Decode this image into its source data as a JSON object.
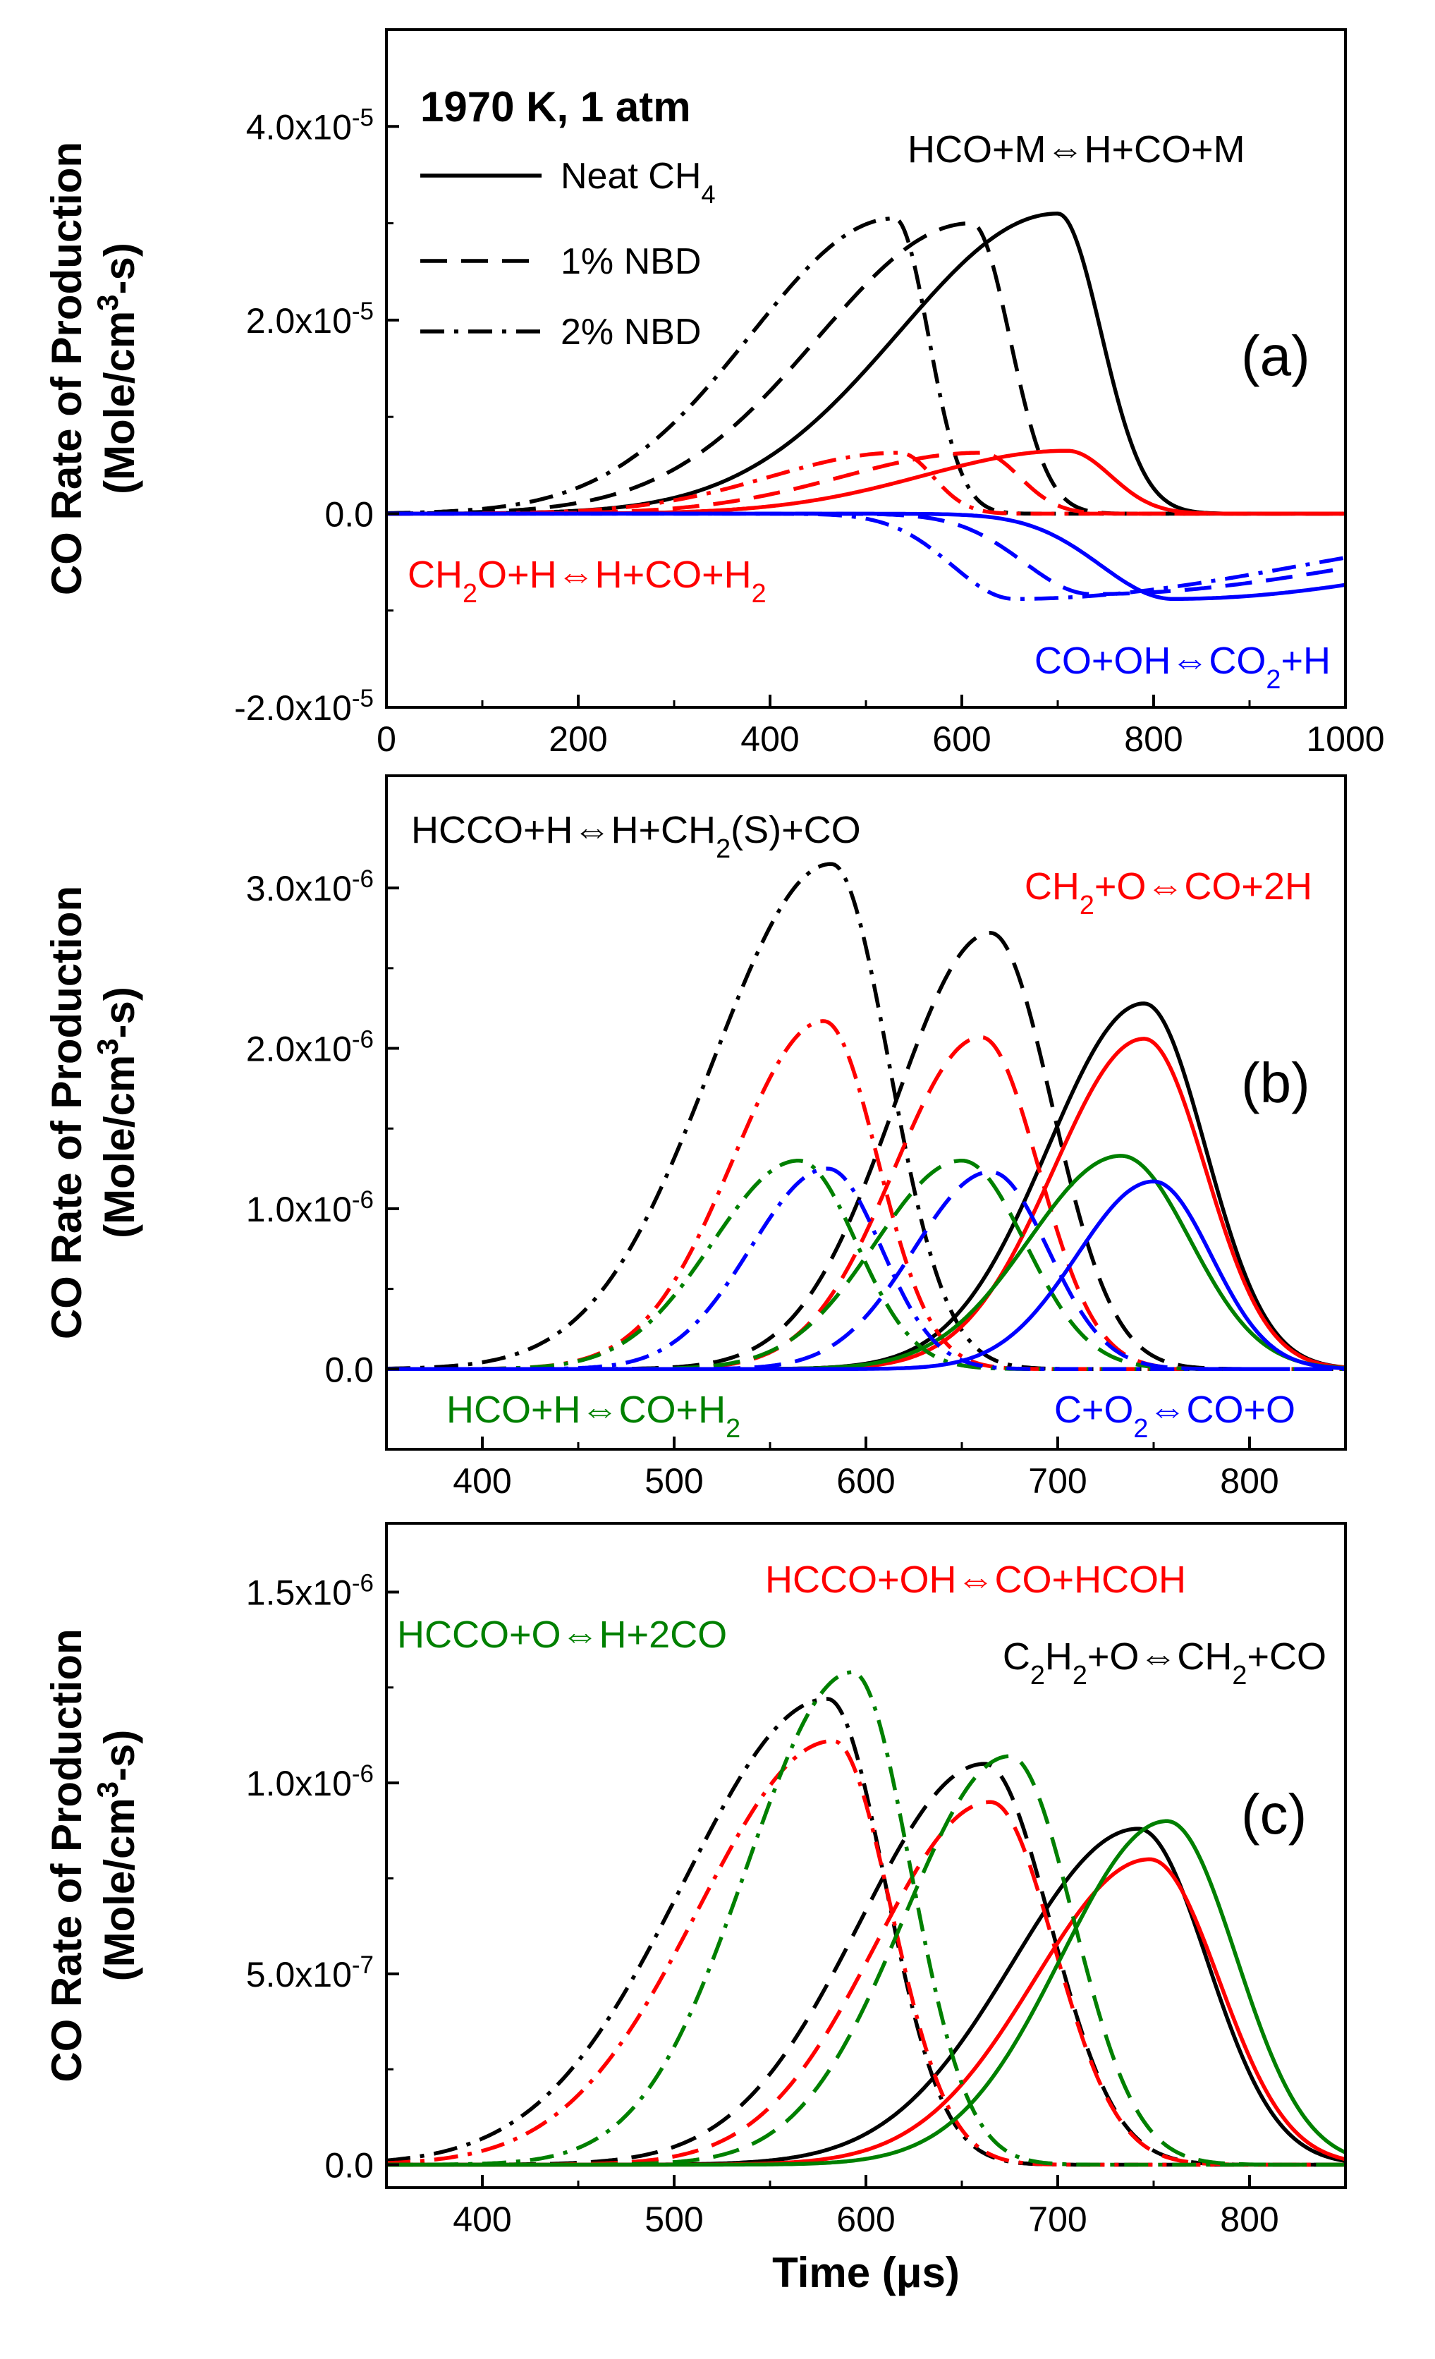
{
  "chart_data": [
    {
      "type": "line",
      "panel_label": "(a)",
      "ylabel_line1": "CO Rate of Production",
      "ylabel_line2_a": "(Mole/cm",
      "ylabel_line2_sup": "3",
      "ylabel_line2_b": "-s)",
      "xlim": [
        0,
        1000
      ],
      "ylim": [
        -2e-05,
        5e-05
      ],
      "x_ticks": [
        0,
        200,
        400,
        600,
        800,
        1000
      ],
      "x_tick_labels": [
        "0",
        "200",
        "400",
        "600",
        "800",
        "1000"
      ],
      "y_ticks": [
        -2e-05,
        0,
        2e-05,
        4e-05
      ],
      "y_tick_labels": [
        {
          "base": "-2.0x10",
          "exp": "-5"
        },
        {
          "base": "0.0",
          "exp": ""
        },
        {
          "base": "2.0x10",
          "exp": "-5"
        },
        {
          "base": "4.0x10",
          "exp": "-5"
        }
      ],
      "legend": {
        "title": "1970 K, 1 atm",
        "entries": [
          {
            "label": "Neat CH",
            "sub": "4",
            "style": "solid"
          },
          {
            "label": "1% NBD",
            "sub": "",
            "style": "dash"
          },
          {
            "label": "2% NBD",
            "sub": "",
            "style": "dashdot"
          }
        ]
      },
      "annotations": [
        {
          "color": "#000000",
          "parts": [
            {
              "t": "HCO+M⇔H+CO+M"
            }
          ]
        },
        {
          "color": "#ff0000",
          "parts": [
            {
              "t": "CH"
            },
            {
              "t": "2",
              "s": "sub"
            },
            {
              "t": "O+H⇔H+CO+H"
            },
            {
              "t": "2",
              "s": "sub"
            }
          ]
        },
        {
          "color": "#0000ff",
          "parts": [
            {
              "t": "CO+OH⇔CO"
            },
            {
              "t": "2",
              "s": "sub"
            },
            {
              "t": "+H"
            }
          ]
        }
      ],
      "series": [
        {
          "name": "HCO+M⇔H+CO+M, Neat CH4",
          "color": "#000000",
          "style": "solid",
          "peak_x": 700,
          "peak_y": 3.1e-05,
          "sigma_left": 165,
          "sigma_right": 45
        },
        {
          "name": "HCO+M⇔H+CO+M, 1% NBD",
          "color": "#000000",
          "style": "dash",
          "peak_x": 610,
          "peak_y": 3e-05,
          "sigma_left": 160,
          "sigma_right": 40
        },
        {
          "name": "HCO+M⇔H+CO+M, 2% NBD",
          "color": "#000000",
          "style": "dashdot",
          "peak_x": 530,
          "peak_y": 3.05e-05,
          "sigma_left": 150,
          "sigma_right": 35
        },
        {
          "name": "CH2O+H⇔H+CO+H2, Neat CH4",
          "color": "#ff0000",
          "style": "solid",
          "peak_x": 710,
          "peak_y": 6.5e-06,
          "sigma_left": 150,
          "sigma_right": 45
        },
        {
          "name": "CH2O+H⇔H+CO+H2, 1% NBD",
          "color": "#ff0000",
          "style": "dash",
          "peak_x": 620,
          "peak_y": 6.3e-06,
          "sigma_left": 145,
          "sigma_right": 40
        },
        {
          "name": "CH2O+H⇔H+CO+H2, 2% NBD",
          "color": "#ff0000",
          "style": "dashdot",
          "peak_x": 535,
          "peak_y": 6.3e-06,
          "sigma_left": 135,
          "sigma_right": 35
        },
        {
          "name": "CO+OH⇔CO2+H, Neat CH4",
          "color": "#0000ff",
          "style": "solid",
          "peak_x": 820,
          "peak_y": -8.8e-06,
          "sigma_left": 75,
          "sigma_right": 300
        },
        {
          "name": "CO+OH⇔CO2+H, 1% NBD",
          "color": "#0000ff",
          "style": "dash",
          "peak_x": 735,
          "peak_y": -8.3e-06,
          "sigma_left": 70,
          "sigma_right": 300
        },
        {
          "name": "CO+OH⇔CO2+H, 2% NBD",
          "color": "#0000ff",
          "style": "dashdot",
          "peak_x": 655,
          "peak_y": -8.8e-06,
          "sigma_left": 65,
          "sigma_right": 300
        }
      ]
    },
    {
      "type": "line",
      "panel_label": "(b)",
      "ylabel_line1": "CO Rate of Production",
      "ylabel_line2_a": "(Mole/cm",
      "ylabel_line2_sup": "3",
      "ylabel_line2_b": "-s)",
      "xlim": [
        350,
        850
      ],
      "ylim": [
        -5e-07,
        3.7e-06
      ],
      "x_ticks": [
        400,
        500,
        600,
        700,
        800
      ],
      "x_tick_labels": [
        "400",
        "500",
        "600",
        "700",
        "800"
      ],
      "y_ticks": [
        0,
        1e-06,
        2e-06,
        3e-06
      ],
      "y_tick_labels": [
        {
          "base": "0.0",
          "exp": ""
        },
        {
          "base": "1.0x10",
          "exp": "-6"
        },
        {
          "base": "2.0x10",
          "exp": "-6"
        },
        {
          "base": "3.0x10",
          "exp": "-6"
        }
      ],
      "annotations": [
        {
          "color": "#000000",
          "parts": [
            {
              "t": "HCCO+H⇔H+CH"
            },
            {
              "t": "2",
              "s": "sub"
            },
            {
              "t": "(S)+CO"
            }
          ]
        },
        {
          "color": "#ff0000",
          "parts": [
            {
              "t": "CH"
            },
            {
              "t": "2",
              "s": "sub"
            },
            {
              "t": "+O⇔CO+2H"
            }
          ]
        },
        {
          "color": "#008000",
          "parts": [
            {
              "t": "HCO+H⇔CO+H"
            },
            {
              "t": "2",
              "s": "sub"
            }
          ]
        },
        {
          "color": "#0000ff",
          "parts": [
            {
              "t": "C+O"
            },
            {
              "t": "2",
              "s": "sub"
            },
            {
              "t": "⇔CO+O"
            }
          ]
        }
      ],
      "series": [
        {
          "name": "HCCO+H⇔H+CH2(S)+CO, Neat CH4",
          "color": "#000000",
          "style": "solid",
          "peak_x": 745,
          "peak_y": 2.28e-06,
          "sigma_left": 50,
          "sigma_right": 32
        },
        {
          "name": "HCCO+H⇔H+CH2(S)+CO, 1% NBD",
          "color": "#000000",
          "style": "dash",
          "peak_x": 665,
          "peak_y": 2.72e-06,
          "sigma_left": 50,
          "sigma_right": 32
        },
        {
          "name": "HCCO+H⇔H+CH2(S)+CO, 2% NBD",
          "color": "#000000",
          "style": "dashdot",
          "peak_x": 582,
          "peak_y": 3.15e-06,
          "sigma_left": 62,
          "sigma_right": 30
        },
        {
          "name": "CH2+O⇔CO+2H, Neat CH4",
          "color": "#ff0000",
          "style": "solid",
          "peak_x": 745,
          "peak_y": 2.06e-06,
          "sigma_left": 47,
          "sigma_right": 32
        },
        {
          "name": "CH2+O⇔CO+2H, 1% NBD",
          "color": "#ff0000",
          "style": "dash",
          "peak_x": 660,
          "peak_y": 2.07e-06,
          "sigma_left": 45,
          "sigma_right": 30
        },
        {
          "name": "CH2+O⇔CO+2H, 2% NBD",
          "color": "#ff0000",
          "style": "dashdot",
          "peak_x": 578,
          "peak_y": 2.17e-06,
          "sigma_left": 47,
          "sigma_right": 28
        },
        {
          "name": "HCO+H⇔CO+H2, Neat CH4",
          "color": "#008000",
          "style": "solid",
          "peak_x": 733,
          "peak_y": 1.33e-06,
          "sigma_left": 48,
          "sigma_right": 36
        },
        {
          "name": "HCO+H⇔CO+H2, 1% NBD",
          "color": "#008000",
          "style": "dash",
          "peak_x": 650,
          "peak_y": 1.3e-06,
          "sigma_left": 45,
          "sigma_right": 33
        },
        {
          "name": "HCO+H⇔CO+H2, 2% NBD",
          "color": "#008000",
          "style": "dashdot",
          "peak_x": 565,
          "peak_y": 1.3e-06,
          "sigma_left": 45,
          "sigma_right": 30
        },
        {
          "name": "C+O2⇔CO+O, Neat CH4",
          "color": "#0000ff",
          "style": "solid",
          "peak_x": 750,
          "peak_y": 1.17e-06,
          "sigma_left": 40,
          "sigma_right": 30
        },
        {
          "name": "C+O2⇔CO+O, 1% NBD",
          "color": "#0000ff",
          "style": "dash",
          "peak_x": 665,
          "peak_y": 1.23e-06,
          "sigma_left": 40,
          "sigma_right": 30
        },
        {
          "name": "C+O2⇔CO+O, 2% NBD",
          "color": "#0000ff",
          "style": "dashdot",
          "peak_x": 580,
          "peak_y": 1.25e-06,
          "sigma_left": 40,
          "sigma_right": 28
        }
      ]
    },
    {
      "type": "line",
      "panel_label": "(c)",
      "ylabel_line1": "CO Rate of Production",
      "ylabel_line2_a": "(Mole/cm",
      "ylabel_line2_sup": "3",
      "ylabel_line2_b": "-s)",
      "xlabel_a": "Time (",
      "xlabel_b": "μ",
      "xlabel_c": "s)",
      "xlim": [
        350,
        850
      ],
      "ylim": [
        -6e-08,
        1.68e-06
      ],
      "x_ticks": [
        400,
        500,
        600,
        700,
        800
      ],
      "x_tick_labels": [
        "400",
        "500",
        "600",
        "700",
        "800"
      ],
      "y_ticks": [
        0,
        5e-07,
        1e-06,
        1.5e-06
      ],
      "y_tick_labels": [
        {
          "base": "0.0",
          "exp": ""
        },
        {
          "base": "5.0x10",
          "exp": "-7"
        },
        {
          "base": "1.0x10",
          "exp": "-6"
        },
        {
          "base": "1.5x10",
          "exp": "-6"
        }
      ],
      "annotations": [
        {
          "color": "#ff0000",
          "parts": [
            {
              "t": "HCCO+OH⇔CO+HCOH"
            }
          ]
        },
        {
          "color": "#008000",
          "parts": [
            {
              "t": "HCCO+O⇔H+2CO"
            }
          ]
        },
        {
          "color": "#000000",
          "parts": [
            {
              "t": "C"
            },
            {
              "t": "2",
              "s": "sub"
            },
            {
              "t": "H"
            },
            {
              "t": "2",
              "s": "sub"
            },
            {
              "t": "+O⇔CH"
            },
            {
              "t": "2",
              "s": "sub"
            },
            {
              "t": "+CO"
            }
          ]
        }
      ],
      "series": [
        {
          "name": "C2H2+O⇔CH2+CO, Neat CH4",
          "color": "#000000",
          "style": "solid",
          "peak_x": 742,
          "peak_y": 8.8e-07,
          "sigma_left": 65,
          "sigma_right": 36
        },
        {
          "name": "C2H2+O⇔CH2+CO, 1% NBD",
          "color": "#000000",
          "style": "dash",
          "peak_x": 662,
          "peak_y": 1.05e-06,
          "sigma_left": 65,
          "sigma_right": 34
        },
        {
          "name": "C2H2+O⇔CH2+CO, 2% NBD",
          "color": "#000000",
          "style": "dashdot",
          "peak_x": 580,
          "peak_y": 1.22e-06,
          "sigma_left": 75,
          "sigma_right": 30
        },
        {
          "name": "HCCO+OH⇔CO+HCOH, Neat CH4",
          "color": "#ff0000",
          "style": "solid",
          "peak_x": 748,
          "peak_y": 8e-07,
          "sigma_left": 60,
          "sigma_right": 36
        },
        {
          "name": "HCCO+OH⇔CO+HCOH, 1% NBD",
          "color": "#ff0000",
          "style": "dash",
          "peak_x": 665,
          "peak_y": 9.5e-07,
          "sigma_left": 60,
          "sigma_right": 33
        },
        {
          "name": "HCCO+OH⇔CO+HCOH, 2% NBD",
          "color": "#ff0000",
          "style": "dashdot",
          "peak_x": 583,
          "peak_y": 1.11e-06,
          "sigma_left": 70,
          "sigma_right": 30
        },
        {
          "name": "HCCO+O⇔H+2CO, Neat CH4",
          "color": "#008000",
          "style": "solid",
          "peak_x": 757,
          "peak_y": 9e-07,
          "sigma_left": 55,
          "sigma_right": 36
        },
        {
          "name": "HCCO+O⇔H+2CO, 1% NBD",
          "color": "#008000",
          "style": "dash",
          "peak_x": 675,
          "peak_y": 1.07e-06,
          "sigma_left": 55,
          "sigma_right": 33
        },
        {
          "name": "HCCO+O⇔H+2CO, 2% NBD",
          "color": "#008000",
          "style": "dashdot",
          "peak_x": 593,
          "peak_y": 1.29e-06,
          "sigma_left": 55,
          "sigma_right": 30
        }
      ]
    }
  ]
}
